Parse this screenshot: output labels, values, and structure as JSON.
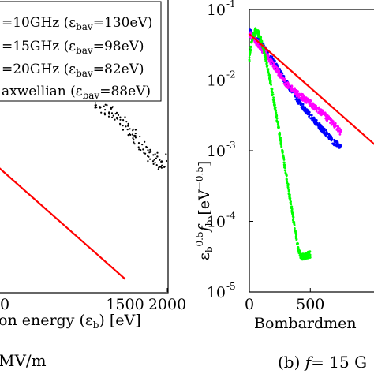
{
  "chart_data": [
    {
      "type": "scatter",
      "title": "",
      "xlabel_prefix": "on energy (",
      "xlabel_symbol": "ε",
      "xlabel_sub": "b",
      "xlabel_suffix": ") [eV]",
      "caption": "MV/m",
      "xlim": [
        0,
        2000
      ],
      "xticks": [
        "0",
        "500",
        "1000",
        "1500",
        "2000"
      ],
      "xticks_visible": [
        {
          "v": 1500,
          "label": "1500"
        },
        {
          "v": 2000,
          "label": "2000"
        }
      ],
      "partial_tick_label": "0",
      "ylog": true,
      "legend": {
        "placement": "top-left",
        "entries": [
          {
            "label": "=10GHz (ε",
            "sub": "bav",
            "tail": "=130eV)"
          },
          {
            "label": "=15GHz (ε",
            "sub": "bav",
            "tail": "=98eV)"
          },
          {
            "label": "=20GHz (ε",
            "sub": "bav",
            "tail": "=82eV)"
          },
          {
            "label": "axwellian (ε",
            "sub": "bav",
            "tail": "=88eV)"
          }
        ]
      },
      "series": [
        {
          "color": "#000000",
          "marker": "dot",
          "x": [
            0,
            100,
            200,
            300,
            400,
            500,
            600,
            700,
            800,
            900,
            1000,
            1100,
            1200,
            1300,
            1400,
            1500,
            1600,
            1700,
            1800,
            1900,
            2000
          ],
          "y": [
            0.002,
            0.0019,
            0.0018,
            0.0016,
            0.0014,
            0.0012,
            0.00105,
            0.0009,
            0.00078,
            0.00066,
            0.00056,
            0.00046,
            0.00037,
            0.0003,
            0.00024,
            0.00019,
            0.00014,
            0.0001,
            7e-05,
            6e-05,
            6e-05
          ]
        },
        {
          "color": "#ff0000",
          "marker": "line",
          "x": [
            0,
            1500
          ],
          "y": [
            5e-05,
            1.5e-06
          ]
        }
      ],
      "ylim": [
        1e-06,
        0.01
      ]
    },
    {
      "type": "scatter",
      "title": "",
      "ylog": true,
      "ylabel": "ε",
      "ylabel_sub1": "b",
      "ylabel_sup": "0.5",
      "ylabel_f": "f",
      "ylabel_sub2": "b",
      "ylabel_unit": "[eV",
      "ylabel_unit_sup": "−0.5",
      "ylabel_unit_close": "]",
      "xlabel": "Bombardmen",
      "caption_prefix": "(b) ",
      "caption_f": "f",
      "caption_rest": "= 15 G",
      "xlim": [
        0,
        1100
      ],
      "xticks": [
        {
          "v": 0,
          "label": "0"
        },
        {
          "v": 500,
          "label": "500"
        }
      ],
      "ylim": [
        1e-05,
        0.1
      ],
      "yticks": [
        {
          "exp": -1,
          "label": "10",
          "sup": "-1"
        },
        {
          "exp": -2,
          "label": "10",
          "sup": "-2"
        },
        {
          "exp": -3,
          "label": "10",
          "sup": "-3"
        },
        {
          "exp": -4,
          "label": "10",
          "sup": "-4"
        },
        {
          "exp": -5,
          "label": "10",
          "sup": "-5"
        }
      ],
      "series": [
        {
          "color": "#0000ff",
          "marker": "dot",
          "x": [
            0,
            50,
            100,
            150,
            200,
            250,
            300,
            350,
            400,
            450,
            500,
            550,
            600,
            650,
            700,
            750
          ],
          "y": [
            0.05,
            0.04,
            0.032,
            0.024,
            0.018,
            0.013,
            0.0095,
            0.007,
            0.0052,
            0.004,
            0.0031,
            0.0025,
            0.002,
            0.0016,
            0.0013,
            0.0011
          ]
        },
        {
          "color": "#ff00ff",
          "marker": "dot",
          "x": [
            0,
            50,
            100,
            150,
            200,
            250,
            300,
            350,
            400,
            450,
            500,
            550,
            600,
            650,
            700,
            750
          ],
          "y": [
            0.045,
            0.036,
            0.028,
            0.021,
            0.016,
            0.012,
            0.009,
            0.0075,
            0.0063,
            0.0055,
            0.0047,
            0.004,
            0.0034,
            0.0028,
            0.0023,
            0.0018
          ]
        },
        {
          "color": "#00ff00",
          "marker": "dot",
          "x": [
            0,
            25,
            50,
            75,
            100,
            125,
            150,
            175,
            200,
            225,
            250,
            275,
            300,
            325,
            350,
            375,
            400,
            425,
            450,
            475,
            500
          ],
          "y": [
            0.02,
            0.04,
            0.05,
            0.045,
            0.035,
            0.024,
            0.015,
            0.009,
            0.0052,
            0.0029,
            0.0016,
            0.00088,
            0.00048,
            0.00026,
            0.00014,
            7.5e-05,
            4.2e-05,
            3.1e-05,
            3.2e-05,
            3.3e-05,
            3.4e-05
          ]
        },
        {
          "color": "#ff0000",
          "marker": "line",
          "x": [
            0,
            1100
          ],
          "y": [
            0.045,
            0.00095
          ]
        }
      ]
    }
  ]
}
